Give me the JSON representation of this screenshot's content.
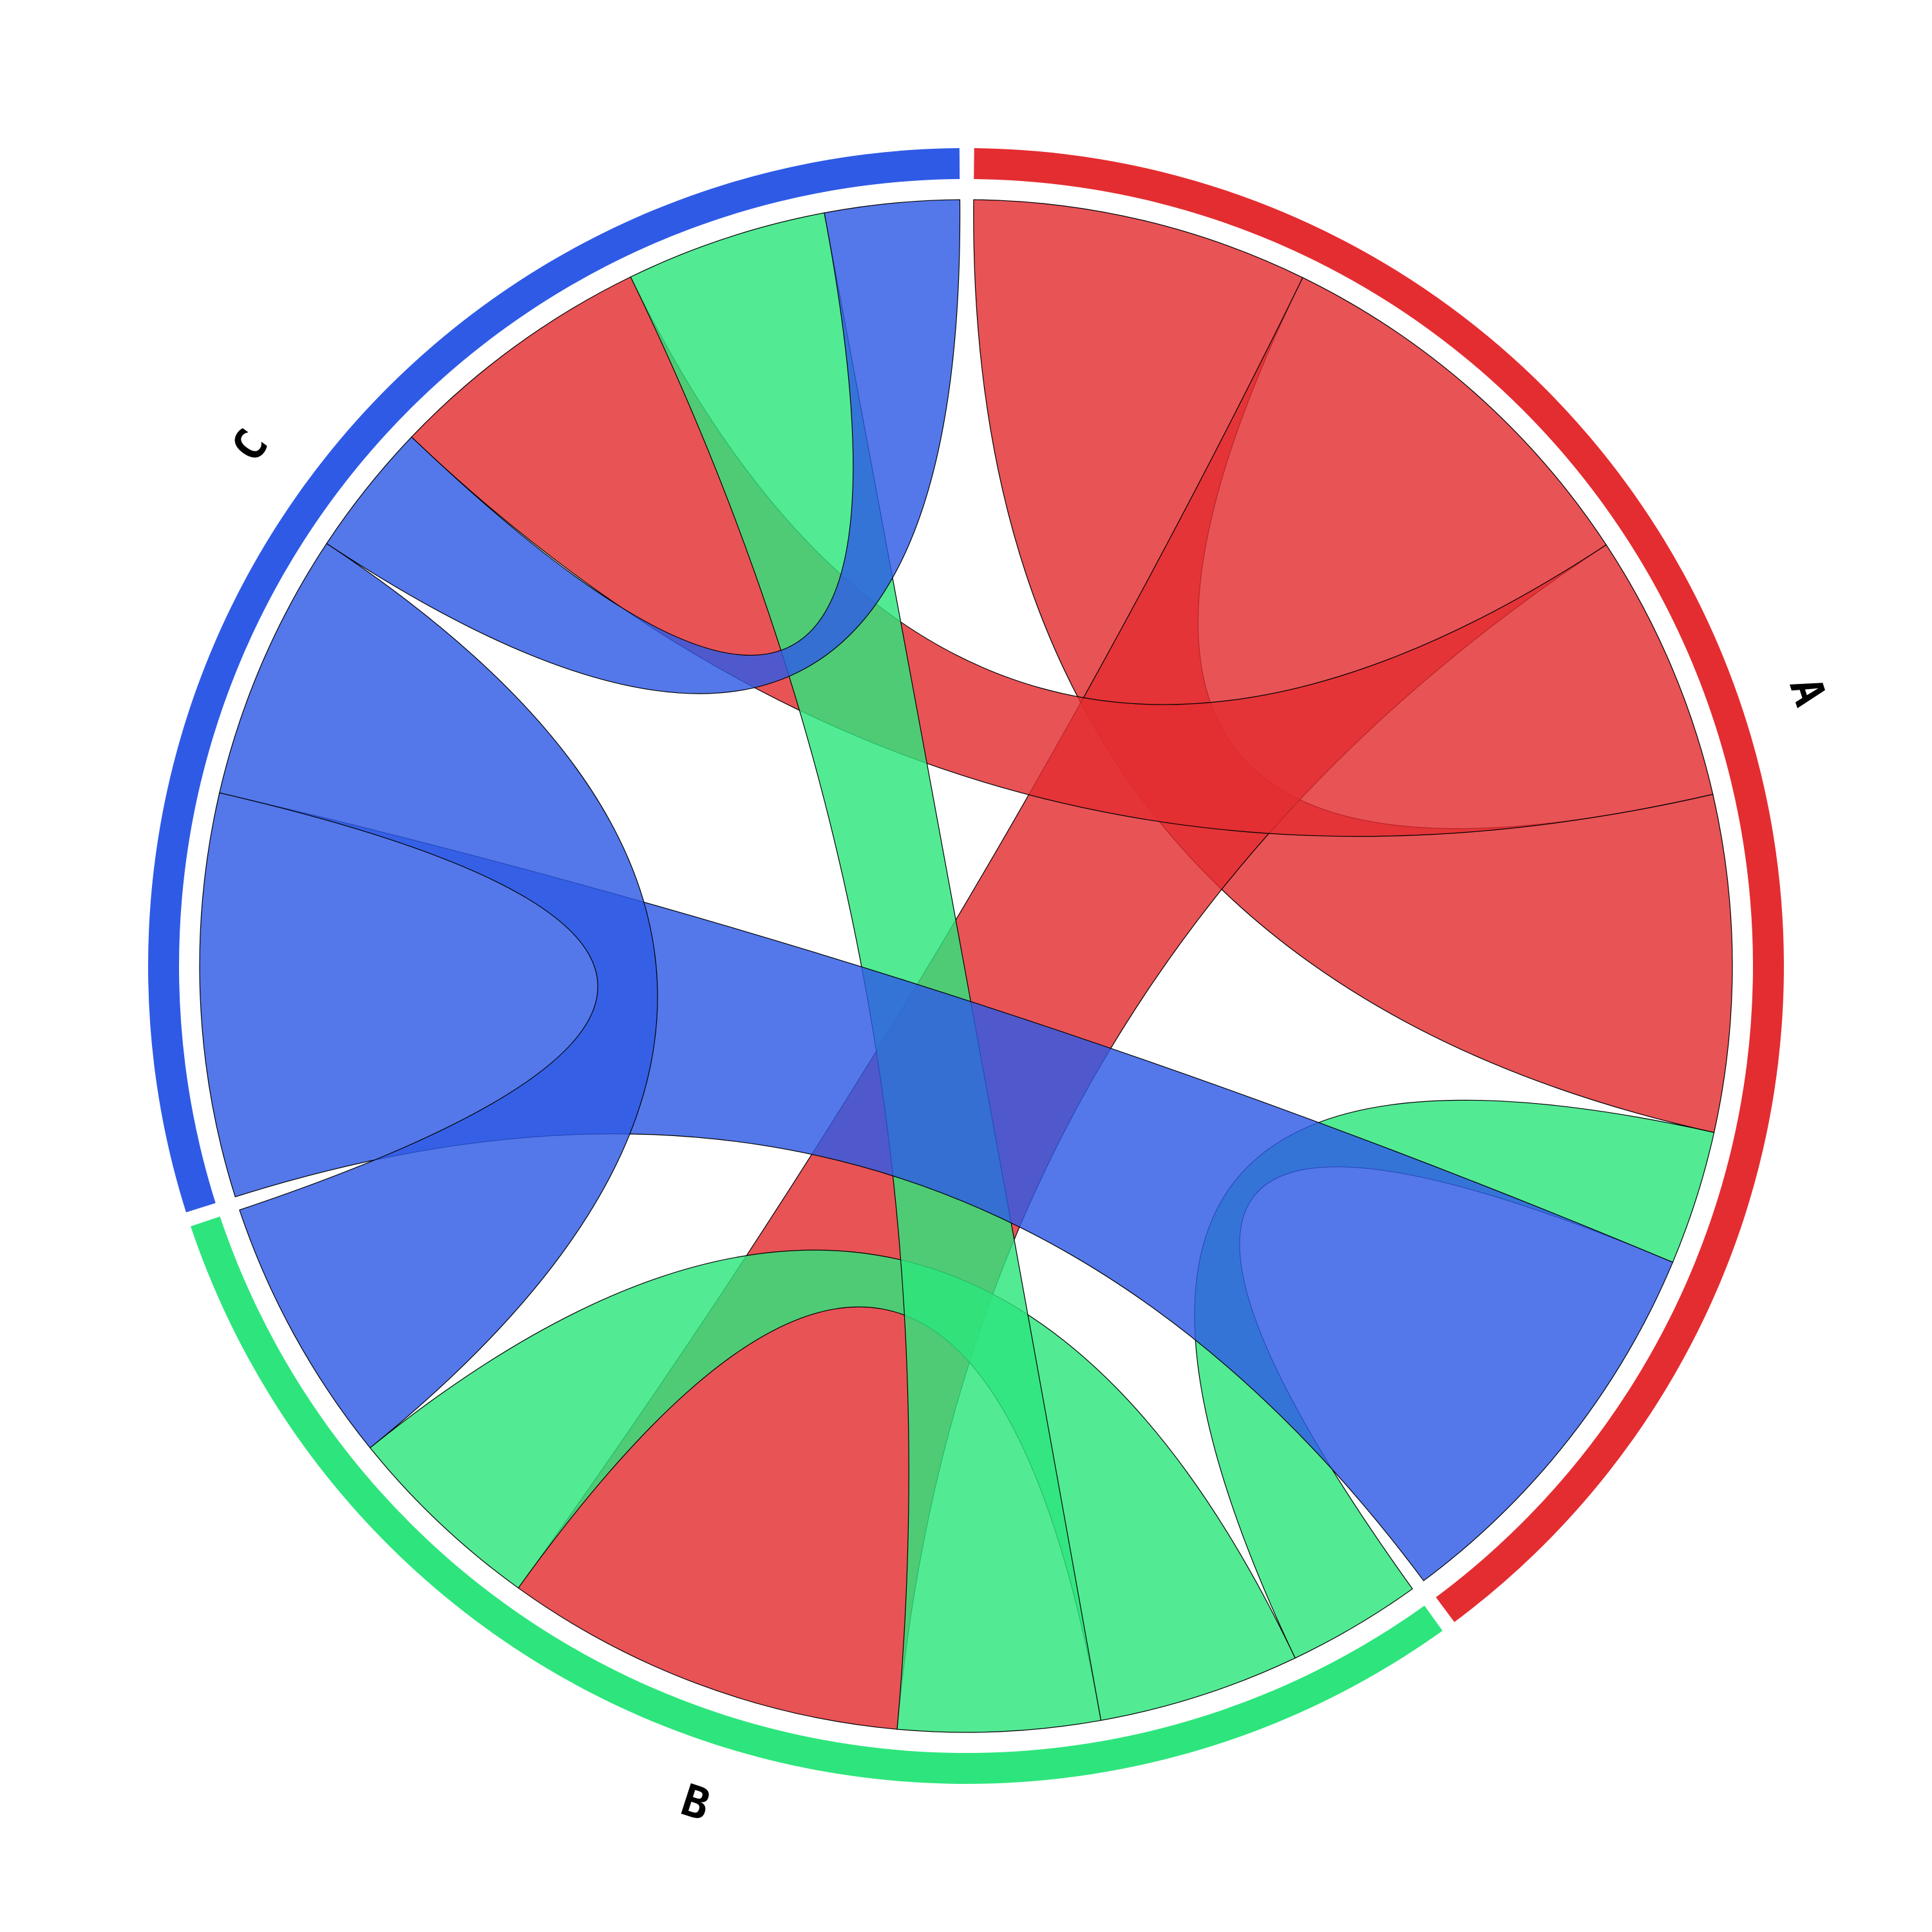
{
  "chart_data": {
    "type": "chord",
    "groups": [
      {
        "id": "A",
        "label": "A",
        "color": "#e32d31"
      },
      {
        "id": "B",
        "label": "B",
        "color": "#2de57c"
      },
      {
        "id": "C",
        "label": "C",
        "color": "#2e5ae5"
      }
    ],
    "matrix_rows_outgoing": [
      "A",
      "B",
      "C"
    ],
    "matrix": [
      [
        5,
        6,
        4
      ],
      [
        2,
        3,
        3
      ],
      [
        6,
        4,
        2
      ]
    ],
    "ribbons": [
      {
        "source": "A",
        "target": "A",
        "value": 5,
        "color": "#e32d31"
      },
      {
        "source": "A",
        "target": "B",
        "value": 6,
        "color": "#e32d31"
      },
      {
        "source": "A",
        "target": "C",
        "value": 4,
        "color": "#e32d31"
      },
      {
        "source": "B",
        "target": "A",
        "value": 2,
        "color": "#2de57c"
      },
      {
        "source": "B",
        "target": "B",
        "value": 3,
        "color": "#2de57c"
      },
      {
        "source": "B",
        "target": "C",
        "value": 3,
        "color": "#2de57c"
      },
      {
        "source": "C",
        "target": "A",
        "value": 6,
        "color": "#2e5ae5"
      },
      {
        "source": "C",
        "target": "B",
        "value": 4,
        "color": "#2e5ae5"
      },
      {
        "source": "C",
        "target": "C",
        "value": 2,
        "color": "#2e5ae5"
      }
    ],
    "title": "",
    "legend": "none"
  }
}
